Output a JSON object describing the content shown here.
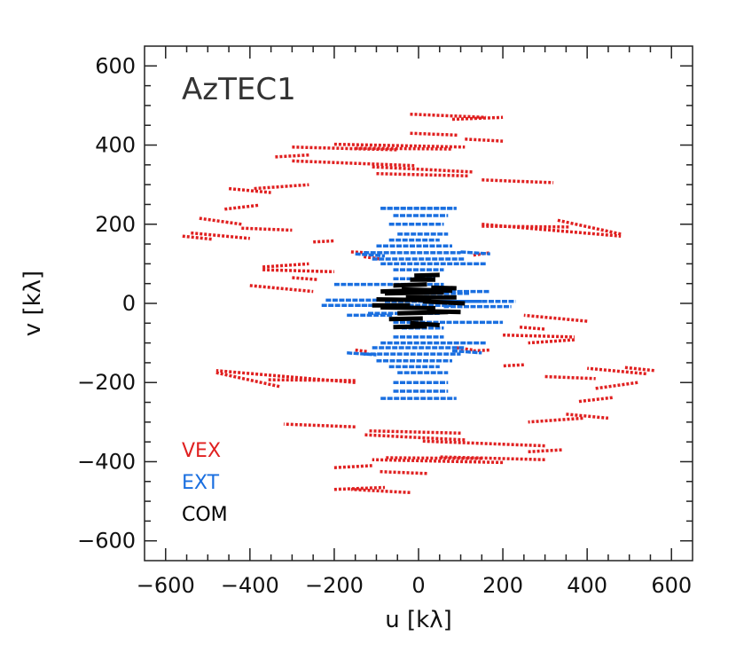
{
  "chart_data": {
    "type": "scatter",
    "title": "AzTEC1",
    "xlabel": "u [kλ]",
    "ylabel": "v [kλ]",
    "xlim": [
      -650,
      650
    ],
    "ylim": [
      -650,
      650
    ],
    "xticks": [
      -600,
      -400,
      -200,
      0,
      200,
      400,
      600
    ],
    "yticks": [
      -600,
      -400,
      -200,
      0,
      200,
      400,
      600
    ],
    "xtick_labels": [
      "−600",
      "−400",
      "−200",
      "0",
      "200",
      "400",
      "600"
    ],
    "ytick_labels": [
      "−600",
      "−400",
      "−200",
      "0",
      "200",
      "400",
      "600"
    ],
    "grid": false,
    "legend_position": "bottom-left",
    "series": [
      {
        "name": "VEX",
        "color": "#e02020",
        "tracks": [
          [
            -20,
            478,
            160,
            470
          ],
          [
            -20,
            430,
            95,
            425
          ],
          [
            -300,
            360,
            -10,
            348
          ],
          [
            -300,
            395,
            -50,
            388
          ],
          [
            -150,
            392,
            80,
            390
          ],
          [
            -110,
            345,
            130,
            332
          ],
          [
            -100,
            328,
            120,
            322
          ],
          [
            -390,
            290,
            -260,
            300
          ],
          [
            -460,
            238,
            -380,
            248
          ],
          [
            -540,
            178,
            -400,
            164
          ],
          [
            -250,
            155,
            -200,
            158
          ],
          [
            -370,
            92,
            -260,
            100
          ],
          [
            -400,
            45,
            -250,
            30
          ],
          [
            150,
            200,
            480,
            170
          ],
          [
            150,
            195,
            360,
            193
          ],
          [
            150,
            312,
            320,
            305
          ],
          [
            330,
            210,
            480,
            175
          ],
          [
            -200,
            402,
            110,
            395
          ],
          [
            -20,
            -478,
            -160,
            -470
          ],
          [
            20,
            -430,
            -95,
            -425
          ],
          [
            300,
            -360,
            10,
            -348
          ],
          [
            300,
            -395,
            50,
            -388
          ],
          [
            150,
            -392,
            -80,
            -390
          ],
          [
            110,
            -345,
            -130,
            -332
          ],
          [
            100,
            -328,
            -120,
            -322
          ],
          [
            390,
            -290,
            260,
            -300
          ],
          [
            460,
            -238,
            380,
            -248
          ],
          [
            540,
            -178,
            400,
            -164
          ],
          [
            250,
            -155,
            200,
            -158
          ],
          [
            370,
            -92,
            260,
            -100
          ],
          [
            400,
            -45,
            250,
            -30
          ],
          [
            -150,
            -200,
            -480,
            -170
          ],
          [
            -150,
            -195,
            -360,
            -193
          ],
          [
            -150,
            -312,
            -320,
            -305
          ],
          [
            -330,
            -210,
            -480,
            -175
          ],
          [
            200,
            -402,
            -110,
            -395
          ],
          [
            -160,
            130,
            -120,
            128
          ],
          [
            -150,
            -118,
            -120,
            -122
          ],
          [
            130,
            -120,
            170,
            -118
          ],
          [
            130,
            122,
            170,
            128
          ],
          [
            -130,
            118,
            -90,
            112
          ],
          [
            90,
            -112,
            130,
            -118
          ],
          [
            420,
            -215,
            520,
            -200
          ],
          [
            -520,
            215,
            -420,
            200
          ],
          [
            350,
            -280,
            450,
            -290
          ],
          [
            -450,
            290,
            -350,
            280
          ],
          [
            110,
            415,
            200,
            410
          ],
          [
            -200,
            -415,
            -110,
            -410
          ],
          [
            80,
            465,
            200,
            470
          ],
          [
            -200,
            -470,
            -80,
            -465
          ],
          [
            -340,
            370,
            -260,
            375
          ],
          [
            260,
            -375,
            340,
            -370
          ],
          [
            490,
            -162,
            560,
            -170
          ],
          [
            -560,
            170,
            -490,
            162
          ],
          [
            -420,
            190,
            -300,
            185
          ],
          [
            300,
            -185,
            420,
            -190
          ],
          [
            200,
            -80,
            370,
            -85
          ],
          [
            -370,
            85,
            -200,
            80
          ],
          [
            240,
            -60,
            300,
            -65
          ],
          [
            -300,
            65,
            -240,
            60
          ]
        ]
      },
      {
        "name": "EXT",
        "color": "#1a6fe0",
        "tracks": [
          [
            -90,
            240,
            90,
            240
          ],
          [
            -60,
            222,
            70,
            222
          ],
          [
            -50,
            175,
            70,
            175
          ],
          [
            -70,
            160,
            50,
            160
          ],
          [
            -100,
            145,
            80,
            145
          ],
          [
            -130,
            128,
            100,
            128
          ],
          [
            -110,
            112,
            110,
            112
          ],
          [
            -90,
            100,
            160,
            100
          ],
          [
            -60,
            85,
            60,
            85
          ],
          [
            -200,
            48,
            60,
            48
          ],
          [
            60,
            30,
            170,
            30
          ],
          [
            -220,
            8,
            -60,
            8
          ],
          [
            40,
            5,
            230,
            5
          ],
          [
            -150,
            -5,
            80,
            -5
          ],
          [
            -120,
            -25,
            50,
            -25
          ],
          [
            -90,
            240,
            90,
            240
          ],
          [
            -60,
            -222,
            70,
            -222
          ],
          [
            -50,
            -175,
            70,
            -175
          ],
          [
            -70,
            -160,
            50,
            -160
          ],
          [
            -100,
            -145,
            80,
            -145
          ],
          [
            -130,
            -128,
            100,
            -128
          ],
          [
            -110,
            -112,
            110,
            -112
          ],
          [
            -90,
            -100,
            160,
            -100
          ],
          [
            -60,
            -85,
            60,
            -85
          ],
          [
            -60,
            -48,
            200,
            -48
          ],
          [
            -170,
            -30,
            -60,
            -30
          ],
          [
            60,
            -8,
            220,
            -8
          ],
          [
            -230,
            -5,
            -40,
            -5
          ],
          [
            -80,
            5,
            150,
            5
          ],
          [
            -50,
            25,
            120,
            25
          ],
          [
            -90,
            -240,
            90,
            -240
          ],
          [
            -60,
            62,
            40,
            62
          ],
          [
            -40,
            -62,
            60,
            -62
          ],
          [
            100,
            130,
            170,
            125
          ],
          [
            -170,
            -125,
            -100,
            -130
          ],
          [
            80,
            -120,
            150,
            -125
          ],
          [
            -150,
            125,
            -80,
            120
          ],
          [
            -60,
            -200,
            70,
            -200
          ],
          [
            -70,
            200,
            60,
            200
          ]
        ]
      },
      {
        "name": "COM",
        "color": "#000000",
        "tracks": [
          [
            -60,
            45,
            20,
            48
          ],
          [
            -20,
            60,
            40,
            60
          ],
          [
            -80,
            25,
            60,
            28
          ],
          [
            -40,
            35,
            80,
            32
          ],
          [
            -100,
            10,
            30,
            8
          ],
          [
            10,
            5,
            110,
            0
          ],
          [
            -90,
            -10,
            40,
            -12
          ],
          [
            -50,
            -25,
            70,
            -22
          ],
          [
            -70,
            -40,
            10,
            -38
          ],
          [
            -20,
            -50,
            50,
            -55
          ],
          [
            -30,
            15,
            90,
            15
          ],
          [
            -110,
            -5,
            -20,
            -5
          ],
          [
            20,
            -20,
            100,
            -22
          ],
          [
            -60,
            -60,
            20,
            -58
          ],
          [
            -10,
            70,
            50,
            72
          ],
          [
            -90,
            30,
            -30,
            32
          ],
          [
            30,
            40,
            90,
            38
          ]
        ]
      }
    ],
    "legend": [
      {
        "label": "VEX",
        "color": "#e02020"
      },
      {
        "label": "EXT",
        "color": "#1a6fe0"
      },
      {
        "label": "COM",
        "color": "#000000"
      }
    ]
  }
}
